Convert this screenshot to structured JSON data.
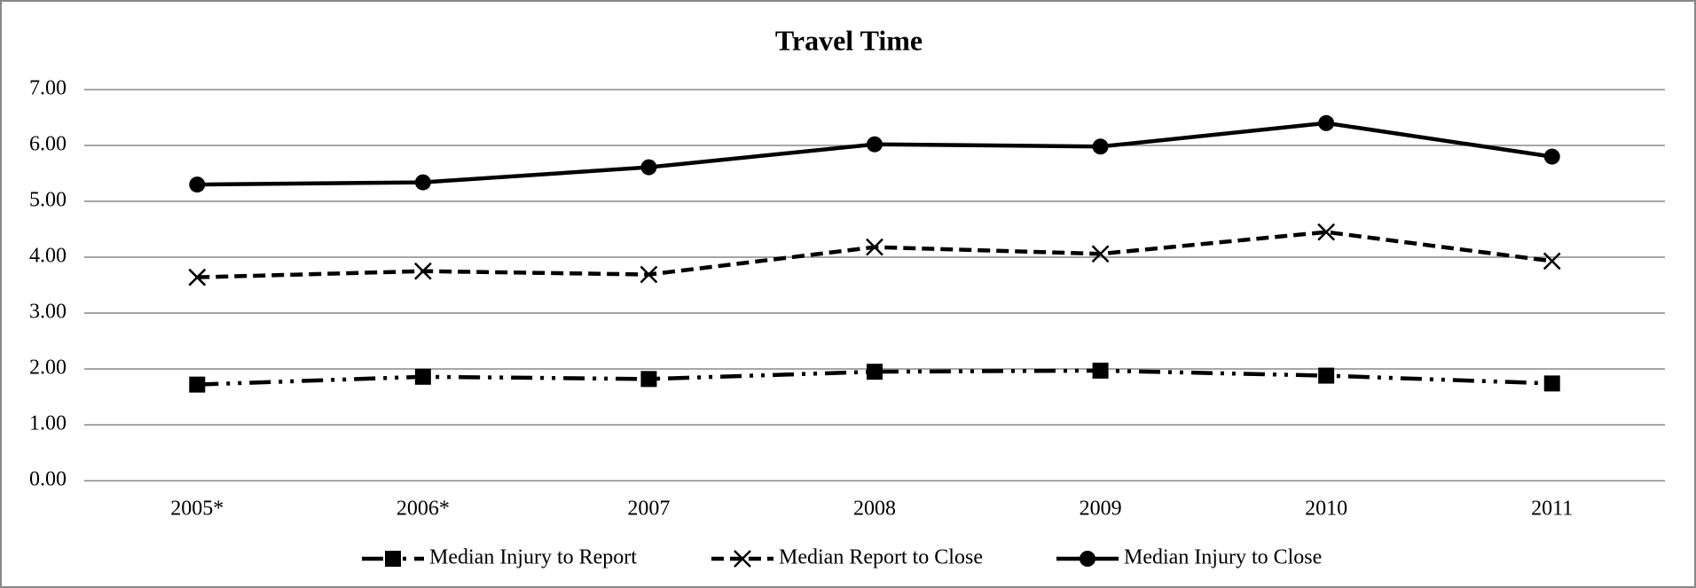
{
  "chart_data": {
    "type": "line",
    "title": "Travel Time",
    "categories": [
      "2005*",
      "2006*",
      "2007",
      "2008",
      "2009",
      "2010",
      "2011"
    ],
    "series": [
      {
        "name": "Median Injury to Report",
        "color": "#000000",
        "marker": "square",
        "dash": "dashdot",
        "values": [
          1.72,
          1.86,
          1.82,
          1.95,
          1.97,
          1.88,
          1.74
        ]
      },
      {
        "name": "Median Report to Close",
        "color": "#000000",
        "marker": "x",
        "dash": "dash",
        "values": [
          3.64,
          3.75,
          3.69,
          4.18,
          4.06,
          4.45,
          3.93
        ]
      },
      {
        "name": "Median Injury to Close",
        "color": "#000000",
        "marker": "circle",
        "dash": "solid",
        "values": [
          5.3,
          5.34,
          5.61,
          6.02,
          5.98,
          6.4,
          5.8
        ]
      }
    ],
    "ylim": [
      0,
      7
    ],
    "yticks": [
      {
        "value": 0,
        "label": "0.00"
      },
      {
        "value": 1,
        "label": "1.00"
      },
      {
        "value": 2,
        "label": "2.00"
      },
      {
        "value": 3,
        "label": "3.00"
      },
      {
        "value": 4,
        "label": "4.00"
      },
      {
        "value": 5,
        "label": "5.00"
      },
      {
        "value": 6,
        "label": "6.00"
      },
      {
        "value": 7,
        "label": "7.00"
      }
    ],
    "grid": true,
    "legend": "bottom"
  }
}
